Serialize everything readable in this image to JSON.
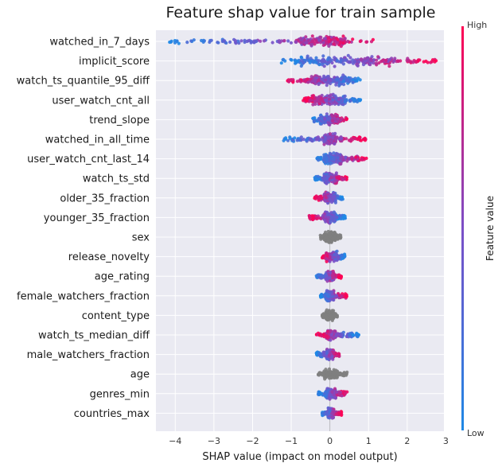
{
  "chart_data": {
    "type": "scatter",
    "title": "Feature shap value for train sample",
    "xlabel": "SHAP value (impact on model output)",
    "xlim": [
      -4.5,
      2.95
    ],
    "xticks": [
      -4,
      -3,
      -2,
      -1,
      0,
      1,
      2,
      3
    ],
    "grid": true,
    "colorbar": {
      "label": "Feature value",
      "high_label": "High",
      "low_label": "Low",
      "low_color": "#1e88e5",
      "high_color": "#ff0052"
    },
    "neutral_color": "#7f7f7f",
    "features": [
      {
        "name": "watched_in_7_days",
        "min": -4.15,
        "max": 1.4,
        "core": [
          -0.8,
          0.4
        ],
        "low_side": "left",
        "colored": true
      },
      {
        "name": "implicit_score",
        "min": -1.3,
        "max": 2.75,
        "core": [
          -0.9,
          1.6
        ],
        "low_side": "left",
        "colored": true
      },
      {
        "name": "watch_ts_quantile_95_diff",
        "min": -1.1,
        "max": 0.8,
        "core": [
          -0.5,
          0.5
        ],
        "low_side": "right",
        "colored": true
      },
      {
        "name": "user_watch_cnt_all",
        "min": -0.7,
        "max": 0.8,
        "core": [
          -0.5,
          0.4
        ],
        "low_side": "right",
        "colored": true
      },
      {
        "name": "trend_slope",
        "min": -0.45,
        "max": 0.45,
        "core": [
          -0.25,
          0.2
        ],
        "low_side": "left",
        "colored": true
      },
      {
        "name": "watched_in_all_time",
        "min": -1.2,
        "max": 0.95,
        "core": [
          -0.15,
          0.15
        ],
        "low_side": "left",
        "colored": true
      },
      {
        "name": "user_watch_cnt_last_14",
        "min": -0.35,
        "max": 0.95,
        "core": [
          -0.15,
          0.3
        ],
        "low_side": "left",
        "colored": true
      },
      {
        "name": "watch_ts_std",
        "min": -0.4,
        "max": 0.45,
        "core": [
          -0.15,
          0.2
        ],
        "low_side": "left",
        "colored": true
      },
      {
        "name": "older_35_fraction",
        "min": -0.4,
        "max": 0.35,
        "core": [
          -0.15,
          0.15
        ],
        "low_side": "right",
        "colored": true
      },
      {
        "name": "younger_35_fraction",
        "min": -0.55,
        "max": 0.4,
        "core": [
          -0.15,
          0.15
        ],
        "low_side": "right",
        "colored": true
      },
      {
        "name": "sex",
        "min": -0.25,
        "max": 0.3,
        "core": [
          -0.15,
          0.15
        ],
        "low_side": "left",
        "colored": false
      },
      {
        "name": "release_novelty",
        "min": -0.2,
        "max": 0.4,
        "core": [
          -0.1,
          0.2
        ],
        "low_side": "right",
        "colored": true
      },
      {
        "name": "age_rating",
        "min": -0.35,
        "max": 0.3,
        "core": [
          -0.1,
          0.1
        ],
        "low_side": "left",
        "colored": true
      },
      {
        "name": "female_watchers_fraction",
        "min": -0.25,
        "max": 0.45,
        "core": [
          -0.1,
          0.1
        ],
        "low_side": "left",
        "colored": true
      },
      {
        "name": "content_type",
        "min": -0.2,
        "max": 0.2,
        "core": [
          -0.1,
          0.1
        ],
        "low_side": "left",
        "colored": false
      },
      {
        "name": "watch_ts_median_diff",
        "min": -0.35,
        "max": 0.75,
        "core": [
          -0.1,
          0.15
        ],
        "low_side": "right",
        "colored": true
      },
      {
        "name": "male_watchers_fraction",
        "min": -0.35,
        "max": 0.3,
        "core": [
          -0.1,
          0.1
        ],
        "low_side": "left",
        "colored": true
      },
      {
        "name": "age",
        "min": -0.3,
        "max": 0.45,
        "core": [
          -0.15,
          0.2
        ],
        "low_side": "left",
        "colored": false
      },
      {
        "name": "genres_min",
        "min": -0.3,
        "max": 0.45,
        "core": [
          -0.1,
          0.15
        ],
        "low_side": "left",
        "colored": true
      },
      {
        "name": "countries_max",
        "min": -0.2,
        "max": 0.3,
        "core": [
          -0.05,
          0.1
        ],
        "low_side": "left",
        "colored": true
      }
    ]
  }
}
